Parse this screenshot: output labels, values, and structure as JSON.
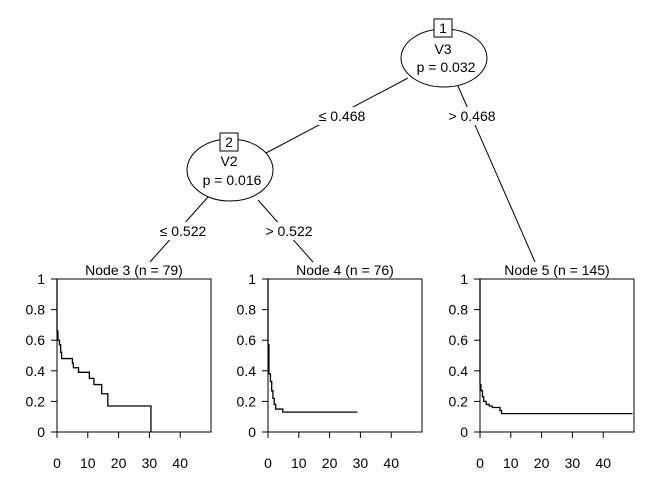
{
  "chart_data": {
    "type": "line",
    "tree": {
      "inner_nodes": [
        {
          "id": "1",
          "variable": "V3",
          "p_label": "p = 0.032"
        },
        {
          "id": "2",
          "variable": "V2",
          "p_label": "p = 0.016"
        }
      ],
      "edges": [
        {
          "from": "1",
          "to": "2",
          "label": "≤ 0.468"
        },
        {
          "from": "1",
          "to": "5",
          "label": "> 0.468"
        },
        {
          "from": "2",
          "to": "3",
          "label": "≤ 0.522"
        },
        {
          "from": "2",
          "to": "4",
          "label": "> 0.522"
        }
      ]
    },
    "panels": [
      {
        "title": "Node 3 (n = 79)",
        "xlim": [
          0,
          50
        ],
        "ylim": [
          0,
          1
        ],
        "xticks": [
          "0",
          "10",
          "20",
          "30",
          "40"
        ],
        "yticks": [
          "0",
          "0.2",
          "0.4",
          "0.6",
          "0.8",
          "1"
        ],
        "steps": [
          [
            0,
            0.66
          ],
          [
            0.3,
            0.6
          ],
          [
            0.8,
            0.57
          ],
          [
            1.2,
            0.52
          ],
          [
            1.5,
            0.48
          ],
          [
            5,
            0.45
          ],
          [
            5.3,
            0.42
          ],
          [
            7,
            0.39
          ],
          [
            10.5,
            0.35
          ],
          [
            12,
            0.31
          ],
          [
            14.5,
            0.25
          ],
          [
            16.5,
            0.17
          ],
          [
            30.5,
            0
          ]
        ],
        "end": 30.5
      },
      {
        "title": "Node 4 (n = 76)",
        "xlim": [
          0,
          50
        ],
        "ylim": [
          0,
          1
        ],
        "xticks": [
          "0",
          "10",
          "20",
          "30",
          "40"
        ],
        "yticks": [
          "0",
          "0.2",
          "0.4",
          "0.6",
          "0.8",
          "1"
        ],
        "steps": [
          [
            0,
            0.57
          ],
          [
            0.3,
            0.38
          ],
          [
            0.8,
            0.33
          ],
          [
            1.2,
            0.27
          ],
          [
            1.6,
            0.22
          ],
          [
            2,
            0.18
          ],
          [
            2.5,
            0.15
          ],
          [
            4.8,
            0.13
          ]
        ],
        "end": 29
      },
      {
        "title": "Node 5 (n = 145)",
        "xlim": [
          0,
          50
        ],
        "ylim": [
          0,
          1
        ],
        "xticks": [
          "0",
          "10",
          "20",
          "30",
          "40"
        ],
        "yticks": [
          "0",
          "0.2",
          "0.4",
          "0.6",
          "0.8",
          "1"
        ],
        "steps": [
          [
            0,
            0.31
          ],
          [
            0.3,
            0.27
          ],
          [
            0.8,
            0.23
          ],
          [
            1.2,
            0.2
          ],
          [
            2,
            0.18
          ],
          [
            3,
            0.17
          ],
          [
            4,
            0.16
          ],
          [
            6.5,
            0.14
          ],
          [
            7,
            0.12
          ]
        ],
        "end": 49.5
      }
    ]
  }
}
